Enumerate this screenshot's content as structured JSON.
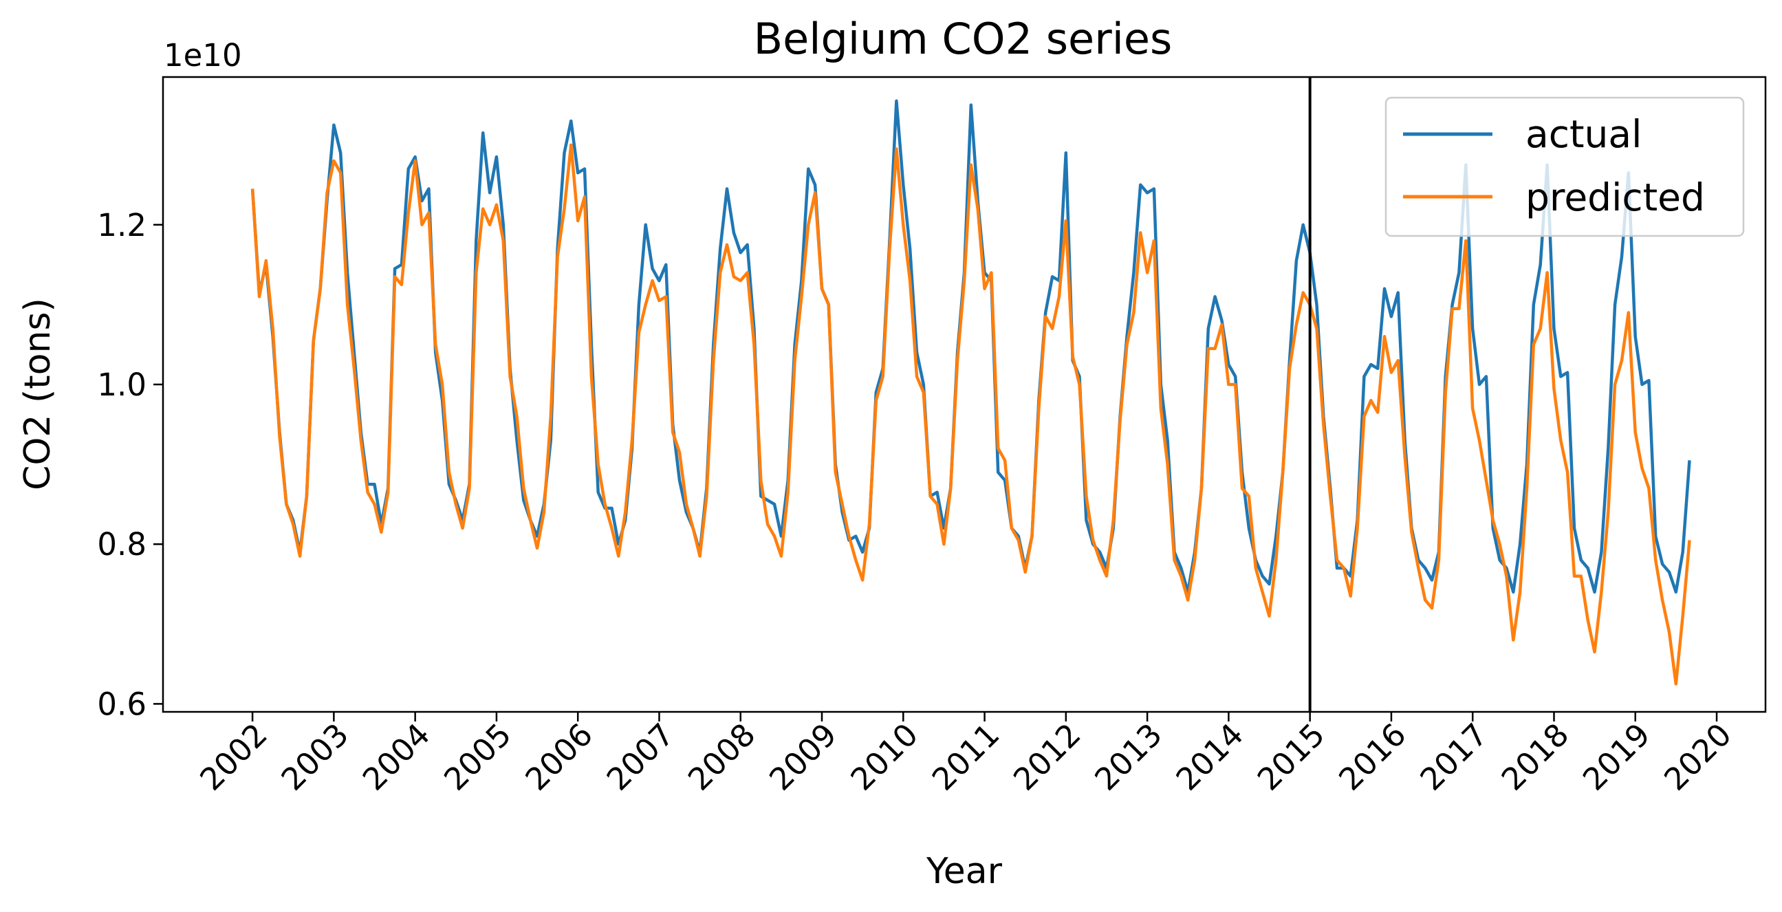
{
  "chart_data": {
    "type": "line",
    "title": "Belgium  CO2 series",
    "xlabel": "Year",
    "ylabel": "CO2 (tons)",
    "y_offset_text": "1e10",
    "y_scale": 10000000000,
    "x_ticks": [
      2002,
      2003,
      2004,
      2005,
      2006,
      2007,
      2008,
      2009,
      2010,
      2011,
      2012,
      2013,
      2014,
      2015,
      2016,
      2017,
      2018,
      2019,
      2020
    ],
    "x_tick_labels": [
      "2002",
      "2003",
      "2004",
      "2005",
      "2006",
      "2007",
      "2008",
      "2009",
      "2010",
      "2011",
      "2012",
      "2013",
      "2014",
      "2015",
      "2016",
      "2017",
      "2018",
      "2019",
      "2020"
    ],
    "y_ticks": [
      0.6,
      0.8,
      1.0,
      1.2
    ],
    "y_tick_labels": [
      "0.6",
      "0.8",
      "1.0",
      "1.2"
    ],
    "xlim": [
      2000.9,
      2020.6
    ],
    "ylim": [
      0.59,
      1.385
    ],
    "grid": false,
    "legend_position": "top-right",
    "vline_x": 2015.0,
    "x_start": 2002.0,
    "x_step": 0.08333,
    "series": [
      {
        "name": "actual",
        "color": "#1f77b4",
        "values": [
          1.245,
          1.115,
          1.15,
          1.06,
          0.94,
          0.85,
          0.83,
          0.79,
          0.86,
          1.055,
          1.12,
          1.23,
          1.325,
          1.29,
          1.14,
          1.04,
          0.94,
          0.875,
          0.875,
          0.825,
          0.87,
          1.145,
          1.15,
          1.27,
          1.285,
          1.23,
          1.245,
          1.04,
          0.98,
          0.875,
          0.855,
          0.83,
          0.875,
          1.18,
          1.315,
          1.24,
          1.285,
          1.2,
          1.02,
          0.93,
          0.855,
          0.83,
          0.81,
          0.85,
          0.93,
          1.17,
          1.29,
          1.33,
          1.265,
          1.27,
          1.05,
          0.865,
          0.845,
          0.845,
          0.8,
          0.83,
          0.92,
          1.1,
          1.2,
          1.145,
          1.13,
          1.15,
          0.95,
          0.88,
          0.84,
          0.82,
          0.79,
          0.87,
          1.05,
          1.17,
          1.245,
          1.19,
          1.165,
          1.175,
          1.07,
          0.86,
          0.855,
          0.85,
          0.81,
          0.88,
          1.05,
          1.13,
          1.27,
          1.25,
          1.12,
          1.1,
          0.9,
          0.84,
          0.805,
          0.81,
          0.79,
          0.82,
          0.99,
          1.02,
          1.18,
          1.355,
          1.25,
          1.17,
          1.04,
          1.0,
          0.86,
          0.865,
          0.82,
          0.87,
          1.04,
          1.14,
          1.35,
          1.23,
          1.14,
          1.13,
          0.89,
          0.88,
          0.82,
          0.81,
          0.77,
          0.81,
          0.98,
          1.09,
          1.135,
          1.13,
          1.29,
          1.03,
          1.01,
          0.83,
          0.8,
          0.79,
          0.77,
          0.82,
          0.96,
          1.06,
          1.14,
          1.25,
          1.24,
          1.245,
          1.0,
          0.93,
          0.79,
          0.77,
          0.74,
          0.79,
          0.87,
          1.07,
          1.11,
          1.08,
          1.025,
          1.01,
          0.89,
          0.82,
          0.78,
          0.76,
          0.75,
          0.81,
          0.89,
          1.03,
          1.155,
          1.2,
          1.165,
          1.1,
          0.96,
          0.87,
          0.77,
          0.77,
          0.76,
          0.83,
          1.01,
          1.025,
          1.02,
          1.12,
          1.085,
          1.115,
          0.93,
          0.82,
          0.78,
          0.77,
          0.755,
          0.79,
          1.01,
          1.1,
          1.14,
          1.275,
          1.07,
          1.0,
          1.01,
          0.82,
          0.78,
          0.77,
          0.74,
          0.8,
          0.9,
          1.1,
          1.15,
          1.275,
          1.07,
          1.01,
          1.015,
          0.82,
          0.78,
          0.77,
          0.74,
          0.79,
          0.92,
          1.1,
          1.16,
          1.265,
          1.06,
          1.0,
          1.005,
          0.81,
          0.775,
          0.765,
          0.74,
          0.79,
          0.905
        ]
      },
      {
        "name": "predicted",
        "color": "#ff7f0e",
        "values": [
          1.245,
          1.11,
          1.155,
          1.07,
          0.935,
          0.85,
          0.825,
          0.785,
          0.86,
          1.055,
          1.12,
          1.24,
          1.28,
          1.265,
          1.1,
          1.02,
          0.93,
          0.865,
          0.85,
          0.815,
          0.865,
          1.135,
          1.125,
          1.215,
          1.28,
          1.2,
          1.215,
          1.05,
          1.0,
          0.89,
          0.85,
          0.82,
          0.87,
          1.14,
          1.22,
          1.2,
          1.225,
          1.18,
          1.01,
          0.96,
          0.87,
          0.83,
          0.795,
          0.84,
          0.96,
          1.16,
          1.22,
          1.3,
          1.205,
          1.235,
          1.01,
          0.9,
          0.85,
          0.82,
          0.785,
          0.84,
          0.93,
          1.065,
          1.1,
          1.13,
          1.105,
          1.11,
          0.94,
          0.915,
          0.85,
          0.82,
          0.785,
          0.86,
          1.03,
          1.14,
          1.175,
          1.135,
          1.13,
          1.14,
          1.05,
          0.88,
          0.825,
          0.81,
          0.785,
          0.865,
          1.03,
          1.11,
          1.2,
          1.24,
          1.12,
          1.1,
          0.89,
          0.85,
          0.81,
          0.78,
          0.755,
          0.825,
          0.98,
          1.01,
          1.17,
          1.295,
          1.2,
          1.13,
          1.01,
          0.99,
          0.86,
          0.85,
          0.8,
          0.87,
          1.03,
          1.13,
          1.275,
          1.22,
          1.12,
          1.14,
          0.92,
          0.905,
          0.82,
          0.805,
          0.765,
          0.81,
          0.97,
          1.085,
          1.07,
          1.11,
          1.205,
          1.035,
          1.0,
          0.86,
          0.805,
          0.78,
          0.76,
          0.83,
          0.955,
          1.05,
          1.09,
          1.19,
          1.14,
          1.18,
          0.97,
          0.9,
          0.78,
          0.76,
          0.73,
          0.78,
          0.87,
          1.045,
          1.045,
          1.075,
          1.0,
          1.0,
          0.87,
          0.86,
          0.77,
          0.74,
          0.71,
          0.78,
          0.89,
          1.02,
          1.075,
          1.115,
          1.1,
          1.07,
          0.95,
          0.86,
          0.78,
          0.77,
          0.735,
          0.82,
          0.96,
          0.98,
          0.965,
          1.06,
          1.015,
          1.03,
          0.91,
          0.815,
          0.77,
          0.73,
          0.72,
          0.78,
          0.99,
          1.095,
          1.095,
          1.18,
          0.97,
          0.93,
          0.88,
          0.83,
          0.8,
          0.76,
          0.68,
          0.74,
          0.87,
          1.05,
          1.07,
          1.14,
          0.995,
          0.93,
          0.89,
          0.76,
          0.76,
          0.705,
          0.665,
          0.74,
          0.84,
          1.0,
          1.03,
          1.09,
          0.94,
          0.895,
          0.87,
          0.78,
          0.73,
          0.69,
          0.625,
          0.71,
          0.805
        ]
      }
    ]
  }
}
